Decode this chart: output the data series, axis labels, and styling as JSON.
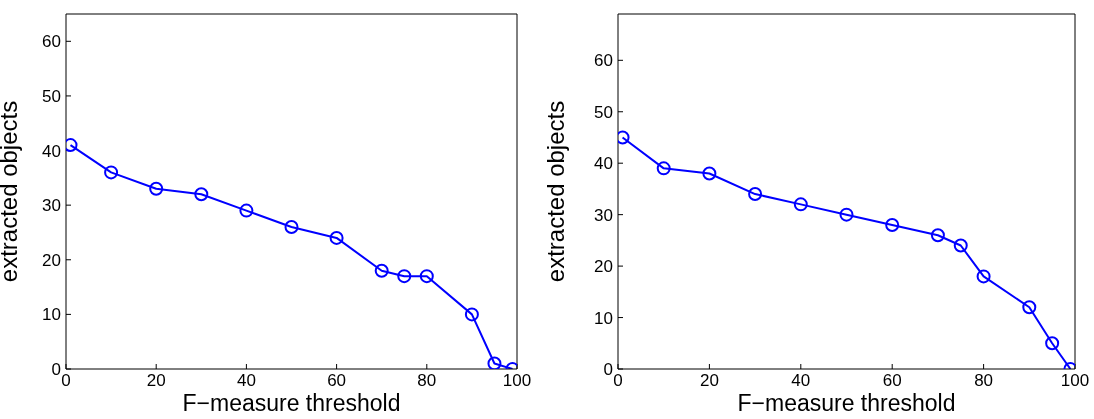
{
  "chart_data": [
    {
      "type": "line",
      "xlabel": "F−measure threshold",
      "ylabel": "extracted objects",
      "x": [
        1,
        10,
        20,
        30,
        40,
        50,
        60,
        70,
        75,
        80,
        90,
        95,
        99
      ],
      "values": [
        41,
        36,
        33,
        32,
        29,
        26,
        24,
        18,
        17,
        17,
        10,
        1,
        0
      ],
      "color": "#0000ff",
      "marker": "circle",
      "line_style": "solid",
      "xlim": [
        0,
        100
      ],
      "xticks": [
        0,
        20,
        40,
        60,
        80,
        100
      ],
      "ylim": [
        0,
        65
      ],
      "yticks": [
        0,
        10,
        20,
        30,
        40,
        50,
        60
      ]
    },
    {
      "type": "line",
      "xlabel": "F−measure threshold",
      "ylabel": "extracted objects",
      "x": [
        1,
        10,
        20,
        30,
        40,
        50,
        60,
        70,
        75,
        80,
        90,
        95,
        99
      ],
      "values": [
        45,
        39,
        38,
        34,
        32,
        30,
        28,
        26,
        24,
        18,
        12,
        5,
        0
      ],
      "color": "#0000ff",
      "marker": "circle",
      "line_style": "solid",
      "xlim": [
        0,
        100
      ],
      "xticks": [
        0,
        20,
        40,
        60,
        80,
        100
      ],
      "ylim": [
        0,
        69
      ],
      "yticks": [
        0,
        10,
        20,
        30,
        40,
        50,
        60
      ]
    }
  ]
}
